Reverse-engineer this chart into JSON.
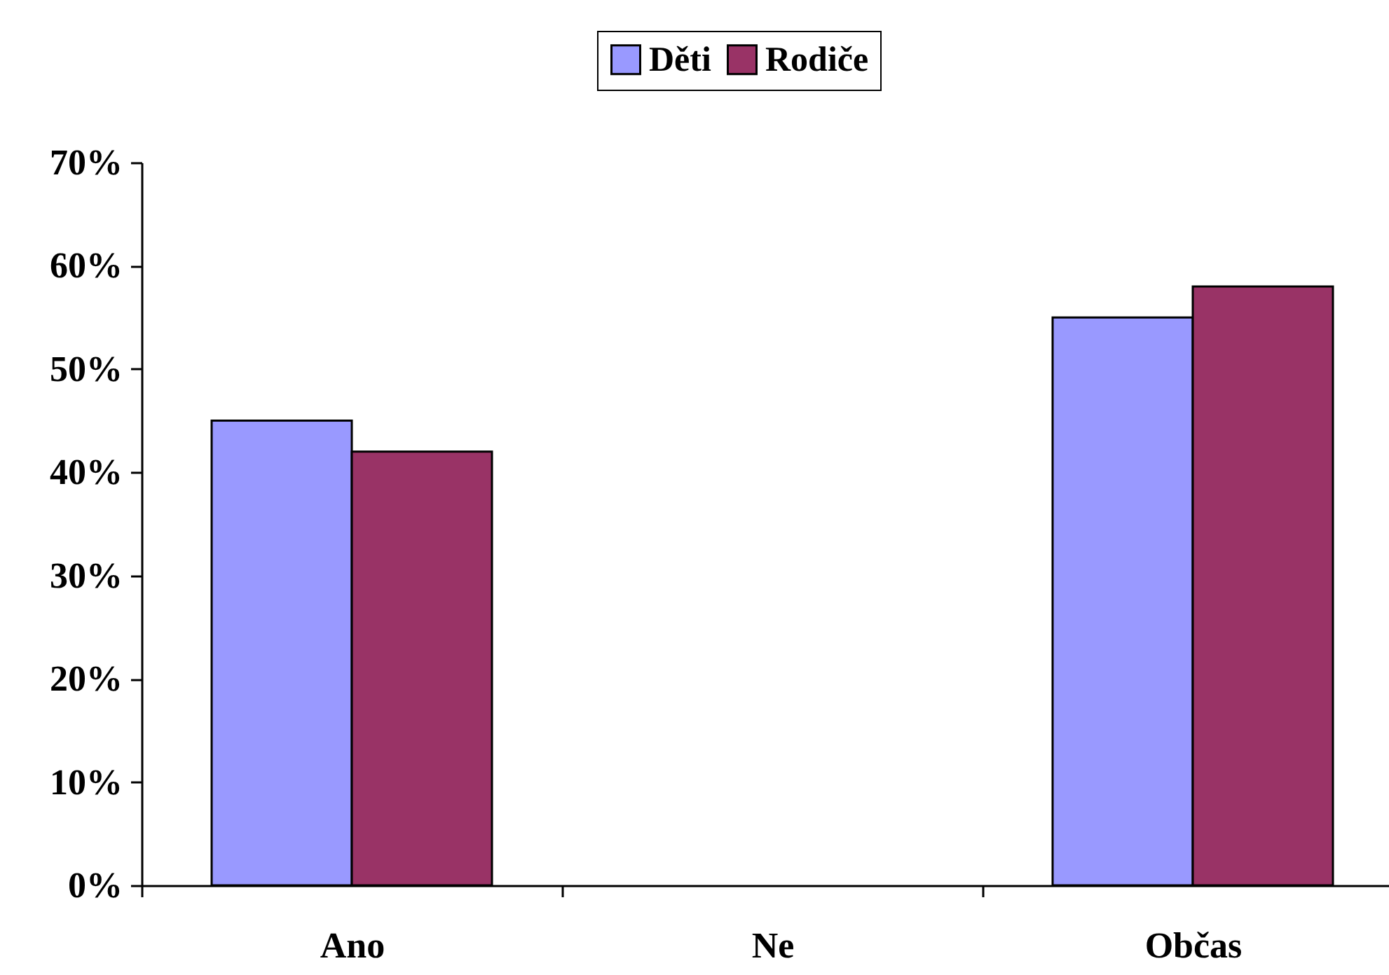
{
  "chart_data": {
    "type": "bar",
    "categories": [
      "Ano",
      "Ne",
      "Občas"
    ],
    "series": [
      {
        "name": "Děti",
        "color": "#9999ff",
        "values": [
          45,
          0,
          55
        ]
      },
      {
        "name": "Rodiče",
        "color": "#993366",
        "values": [
          42,
          0,
          58
        ]
      }
    ],
    "ylim": [
      0,
      70
    ],
    "yticks": [
      {
        "value": 0,
        "label": "0%"
      },
      {
        "value": 10,
        "label": "10%"
      },
      {
        "value": 20,
        "label": "20%"
      },
      {
        "value": 30,
        "label": "30%"
      },
      {
        "value": 40,
        "label": "40%"
      },
      {
        "value": 50,
        "label": "50%"
      },
      {
        "value": 60,
        "label": "60%"
      },
      {
        "value": 70,
        "label": "70%"
      }
    ],
    "grid": false,
    "legend": "top"
  }
}
